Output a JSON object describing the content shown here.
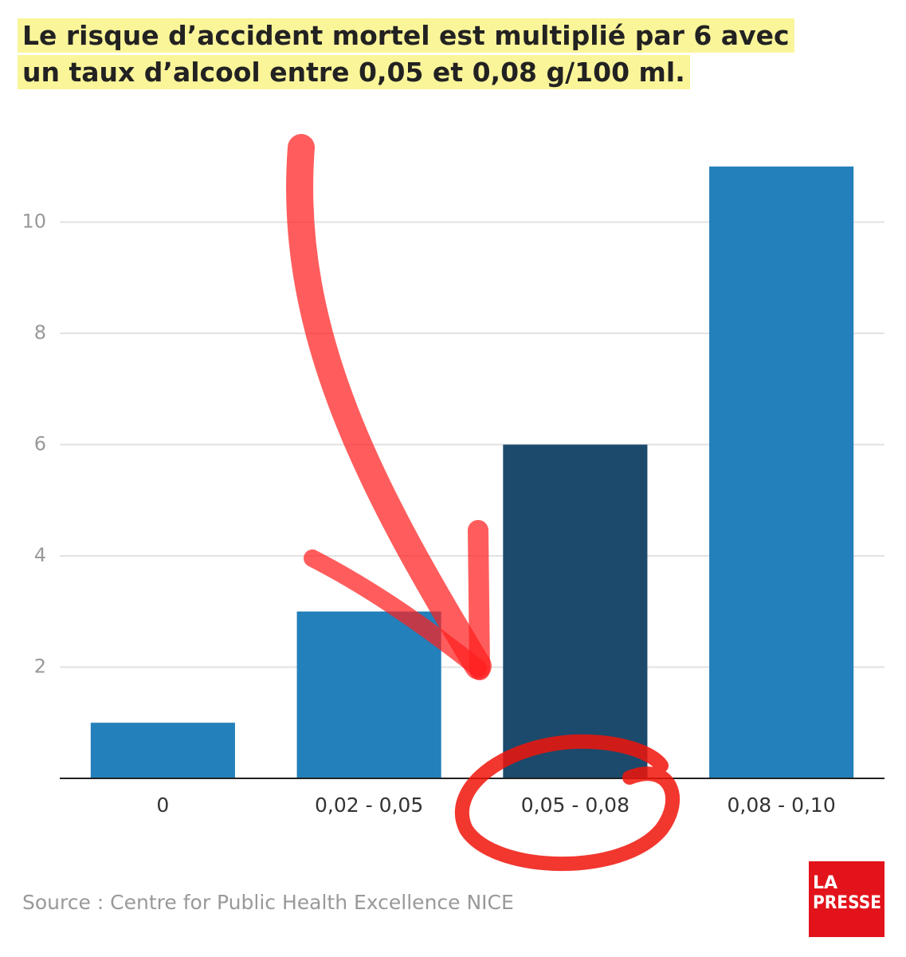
{
  "chart_data": {
    "type": "bar",
    "title": "Le risque d’accident mortel est multiplié par 6 avec un taux d’alcool entre 0,05 et 0,08 g/100 ml.",
    "categories": [
      "0",
      "0,02 - 0,05",
      "0,05 - 0,08",
      "0,08 - 0,10"
    ],
    "values": [
      1,
      3,
      6,
      11
    ],
    "colors": [
      "#2380ba",
      "#2380ba",
      "#1b4a6c",
      "#2380ba"
    ],
    "ylim": [
      0,
      12
    ],
    "yticks": [
      2,
      4,
      6,
      8,
      10
    ],
    "grid": true,
    "source": "Source : Centre for Public Health Excellence NICE",
    "logo": [
      "LA",
      "PRESSE"
    ]
  }
}
